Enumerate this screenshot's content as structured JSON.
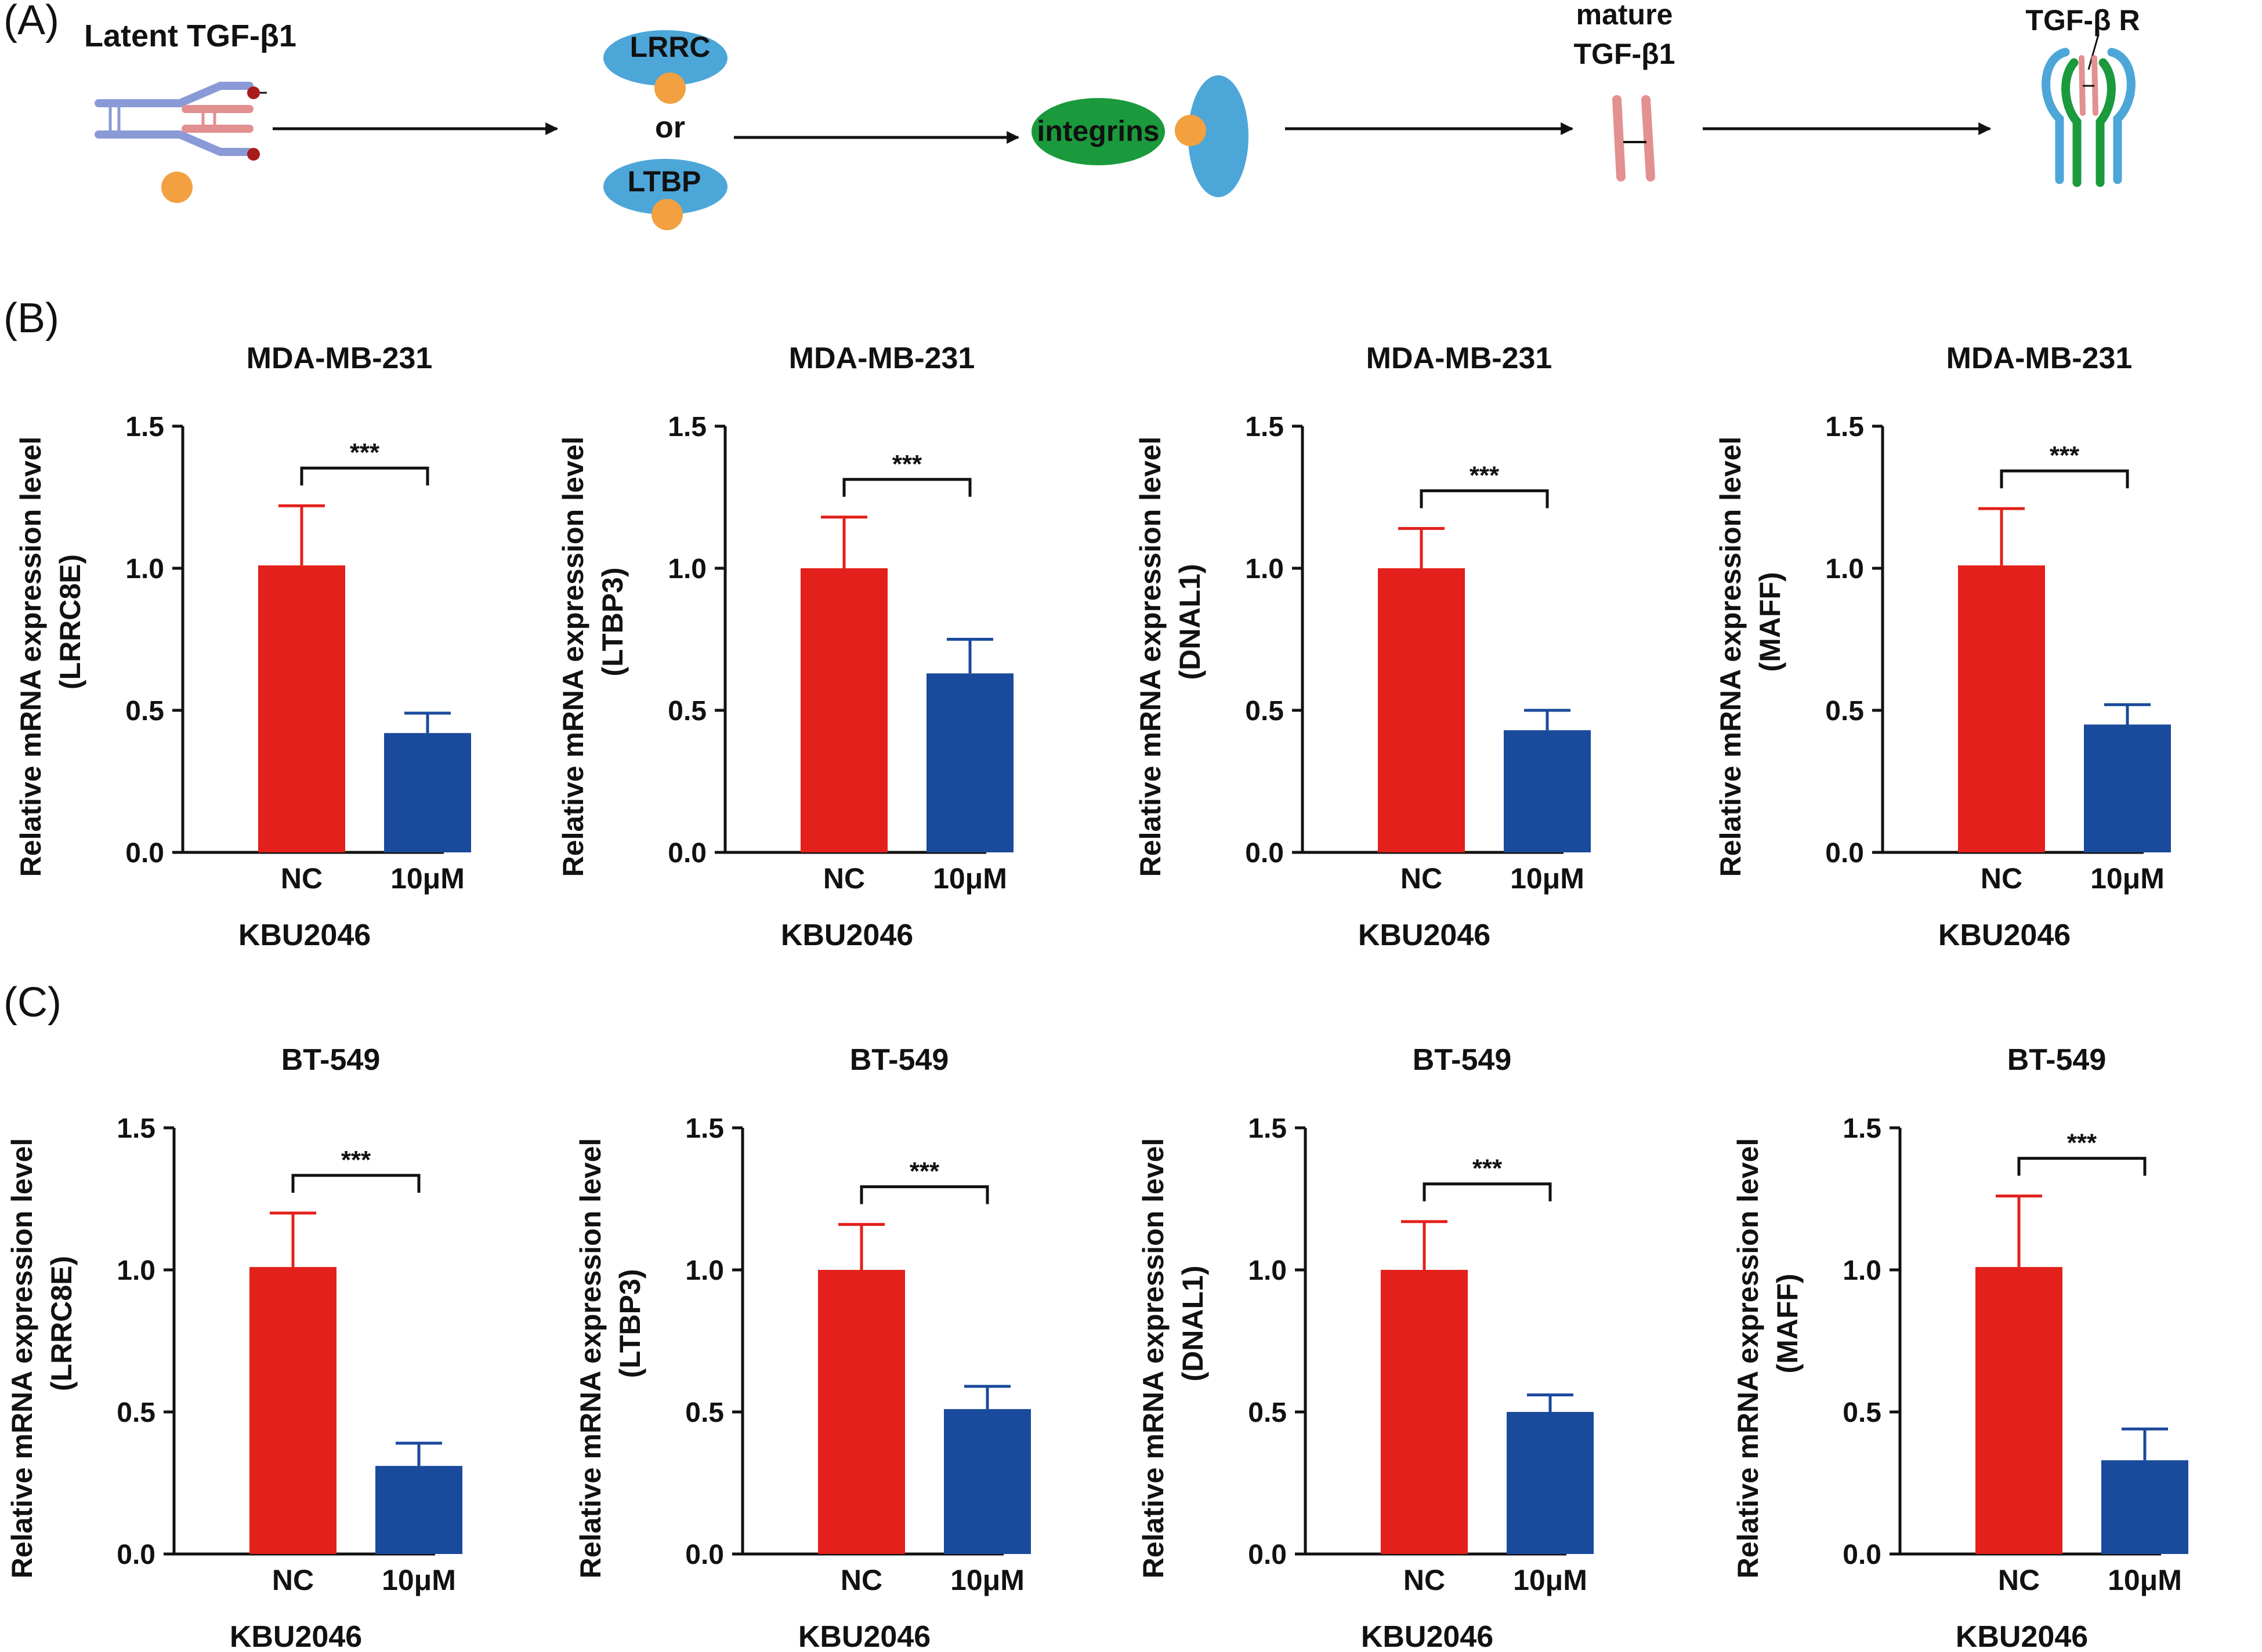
{
  "panel_labels": {
    "a": "(A)",
    "b": "(B)",
    "c": "(C)"
  },
  "pathway": {
    "latent_label": "Latent TGF-β1",
    "lrrc_label": "LRRC",
    "or_label": "or",
    "ltbp_label": "LTBP",
    "integrins_label": "integrins",
    "mature_line1": "mature",
    "mature_line2": "TGF-β1",
    "receptor_label": "TGF-β R"
  },
  "colors": {
    "nc_bar": "#e3201b",
    "treat_bar": "#1a4a9c",
    "axis": "#111111",
    "pathway_blue": "#4da6d8",
    "pathway_green": "#1a9a3c",
    "pathway_orange": "#f2a040",
    "pathway_pink": "#e39090",
    "pathway_purple": "#8a9ad6",
    "pathway_darkred": "#a81c1c"
  },
  "chart_data": [
    {
      "type": "bar",
      "panel": "B",
      "title": "MDA-MB-231",
      "categories": [
        "NC",
        "10μM"
      ],
      "values": [
        1.01,
        0.42
      ],
      "errors": [
        0.21,
        0.07
      ],
      "ylabel_line1": "Relative mRNA expression level",
      "ylabel_line2": "(LRRC8E)",
      "xlabel": "KBU2046",
      "ylim": [
        0,
        1.5
      ],
      "yticks": [
        "0.0",
        "0.5",
        "1.0",
        "1.5"
      ],
      "significance": "***"
    },
    {
      "type": "bar",
      "panel": "B",
      "title": "MDA-MB-231",
      "categories": [
        "NC",
        "10μM"
      ],
      "values": [
        1.0,
        0.63
      ],
      "errors": [
        0.18,
        0.12
      ],
      "ylabel_line1": "Relative mRNA expression level",
      "ylabel_line2": "(LTBP3)",
      "xlabel": "KBU2046",
      "ylim": [
        0,
        1.5
      ],
      "yticks": [
        "0.0",
        "0.5",
        "1.0",
        "1.5"
      ],
      "significance": "***"
    },
    {
      "type": "bar",
      "panel": "B",
      "title": "MDA-MB-231",
      "categories": [
        "NC",
        "10μM"
      ],
      "values": [
        1.0,
        0.43
      ],
      "errors": [
        0.14,
        0.07
      ],
      "ylabel_line1": "Relative mRNA expression level",
      "ylabel_line2": "(DNAL1)",
      "xlabel": "KBU2046",
      "ylim": [
        0,
        1.5
      ],
      "yticks": [
        "0.0",
        "0.5",
        "1.0",
        "1.5"
      ],
      "significance": "***"
    },
    {
      "type": "bar",
      "panel": "B",
      "title": "MDA-MB-231",
      "categories": [
        "NC",
        "10μM"
      ],
      "values": [
        1.01,
        0.45
      ],
      "errors": [
        0.2,
        0.07
      ],
      "ylabel_line1": "Relative mRNA expression level",
      "ylabel_line2": "(MAFF)",
      "xlabel": "KBU2046",
      "ylim": [
        0,
        1.5
      ],
      "yticks": [
        "0.0",
        "0.5",
        "1.0",
        "1.5"
      ],
      "significance": "***"
    },
    {
      "type": "bar",
      "panel": "C",
      "title": "BT-549",
      "categories": [
        "NC",
        "10μM"
      ],
      "values": [
        1.01,
        0.31
      ],
      "errors": [
        0.19,
        0.08
      ],
      "ylabel_line1": "Relative mRNA expression level",
      "ylabel_line2": "(LRRC8E)",
      "xlabel": "KBU2046",
      "ylim": [
        0,
        1.5
      ],
      "yticks": [
        "0.0",
        "0.5",
        "1.0",
        "1.5"
      ],
      "significance": "***"
    },
    {
      "type": "bar",
      "panel": "C",
      "title": "BT-549",
      "categories": [
        "NC",
        "10μM"
      ],
      "values": [
        1.0,
        0.51
      ],
      "errors": [
        0.16,
        0.08
      ],
      "ylabel_line1": "Relative mRNA expression level",
      "ylabel_line2": "(LTBP3)",
      "xlabel": "KBU2046",
      "ylim": [
        0,
        1.5
      ],
      "yticks": [
        "0.0",
        "0.5",
        "1.0",
        "1.5"
      ],
      "significance": "***"
    },
    {
      "type": "bar",
      "panel": "C",
      "title": "BT-549",
      "categories": [
        "NC",
        "10μM"
      ],
      "values": [
        1.0,
        0.5
      ],
      "errors": [
        0.17,
        0.06
      ],
      "ylabel_line1": "Relative mRNA expression level",
      "ylabel_line2": "(DNAL1)",
      "xlabel": "KBU2046",
      "ylim": [
        0,
        1.5
      ],
      "yticks": [
        "0.0",
        "0.5",
        "1.0",
        "1.5"
      ],
      "significance": "***"
    },
    {
      "type": "bar",
      "panel": "C",
      "title": "BT-549",
      "categories": [
        "NC",
        "10μM"
      ],
      "values": [
        1.01,
        0.33
      ],
      "errors": [
        0.25,
        0.11
      ],
      "ylabel_line1": "Relative mRNA expression level",
      "ylabel_line2": "(MAFF)",
      "xlabel": "KBU2046",
      "ylim": [
        0,
        1.5
      ],
      "yticks": [
        "0.0",
        "0.5",
        "1.0",
        "1.5"
      ],
      "significance": "***"
    }
  ]
}
